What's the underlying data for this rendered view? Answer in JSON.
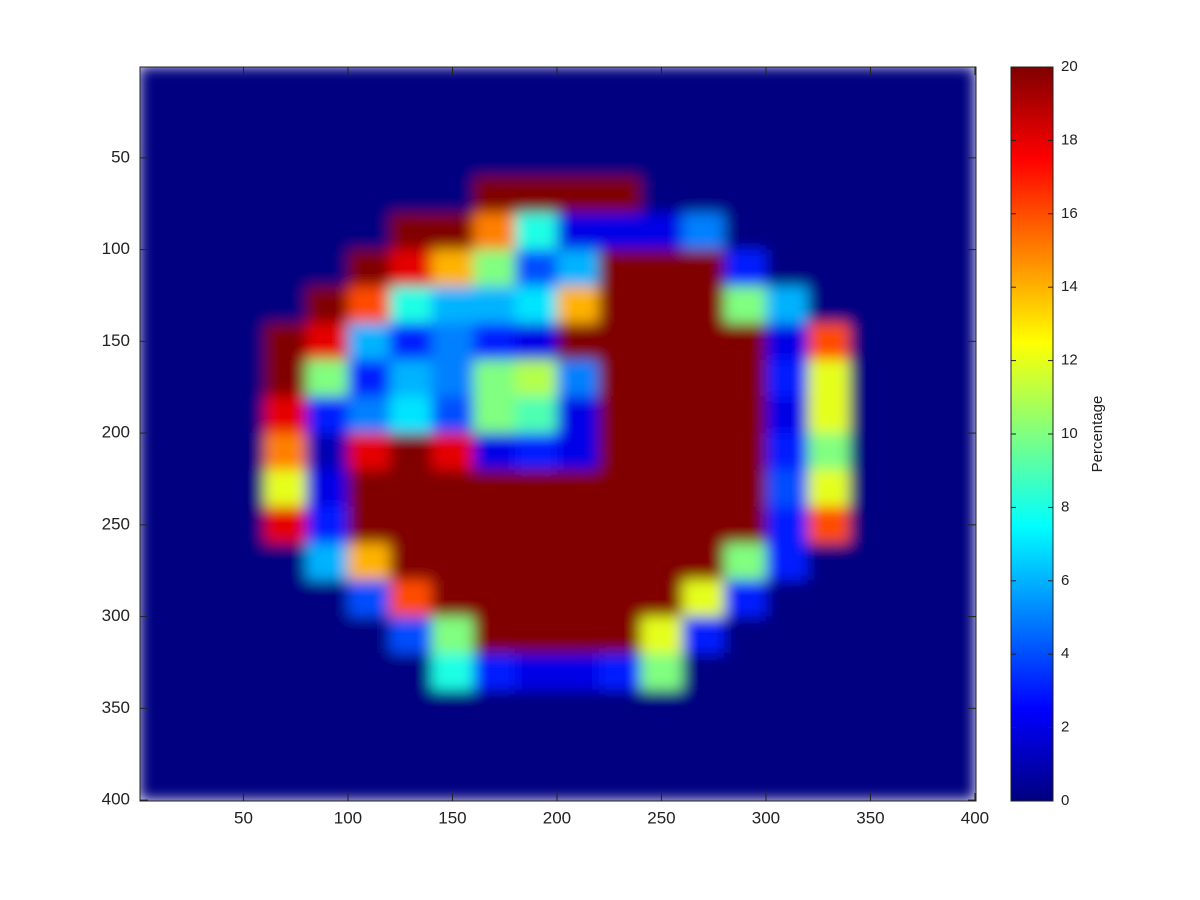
{
  "chart_data": {
    "type": "heatmap",
    "colormap": "jet",
    "x": [
      10,
      30,
      50,
      70,
      90,
      110,
      130,
      150,
      170,
      190,
      210,
      230,
      250,
      270,
      290,
      310,
      330,
      350,
      370,
      390
    ],
    "y": [
      10,
      30,
      50,
      70,
      90,
      110,
      130,
      150,
      170,
      190,
      210,
      230,
      250,
      270,
      290,
      310,
      330,
      350,
      370,
      390
    ],
    "z": [
      [
        0,
        0,
        0,
        0,
        0,
        0,
        0,
        0,
        0,
        0,
        0,
        0,
        0,
        0,
        0,
        0,
        0,
        0,
        0,
        0
      ],
      [
        0,
        0,
        0,
        0,
        0,
        0,
        0,
        0,
        0,
        0,
        0,
        0,
        0,
        0,
        0,
        0,
        0,
        0,
        0,
        0
      ],
      [
        0,
        0,
        0,
        0,
        0,
        0,
        0,
        0,
        0,
        0,
        0,
        0,
        0,
        0,
        0,
        0,
        0,
        0,
        0,
        0
      ],
      [
        0,
        0,
        0,
        0,
        0,
        0,
        0,
        0,
        20,
        20,
        20,
        20,
        0,
        0,
        0,
        0,
        0,
        0,
        0,
        0
      ],
      [
        0,
        0,
        0,
        0,
        0,
        0,
        20,
        20,
        15,
        8,
        2,
        2,
        2,
        5,
        0,
        0,
        0,
        0,
        0,
        0
      ],
      [
        0,
        0,
        0,
        0,
        0,
        20,
        18,
        14,
        10,
        4,
        6,
        20,
        20,
        20,
        3,
        0,
        0,
        0,
        0,
        0
      ],
      [
        0,
        0,
        0,
        0,
        20,
        16,
        8,
        6,
        6,
        7,
        14,
        20,
        20,
        20,
        10,
        6,
        0,
        0,
        0,
        0
      ],
      [
        0,
        0,
        0,
        20,
        18,
        6,
        3,
        5,
        3,
        2,
        20,
        20,
        20,
        20,
        20,
        2,
        16,
        0,
        0,
        0
      ],
      [
        0,
        0,
        0,
        20,
        10,
        3,
        6,
        5,
        10,
        11,
        5,
        20,
        20,
        20,
        20,
        3,
        12,
        0,
        0,
        0
      ],
      [
        0,
        0,
        0,
        18,
        3,
        5,
        7,
        4,
        10,
        9,
        2,
        20,
        20,
        20,
        20,
        2,
        12,
        0,
        0,
        0
      ],
      [
        0,
        0,
        0,
        15,
        1,
        18,
        20,
        18,
        2,
        3,
        2,
        20,
        20,
        20,
        20,
        3,
        10,
        0,
        0,
        0
      ],
      [
        0,
        0,
        0,
        12,
        2,
        20,
        20,
        20,
        20,
        20,
        20,
        20,
        20,
        20,
        20,
        4,
        12,
        0,
        0,
        0
      ],
      [
        0,
        0,
        0,
        18,
        3,
        20,
        20,
        20,
        20,
        20,
        20,
        20,
        20,
        20,
        20,
        3,
        16,
        0,
        0,
        0
      ],
      [
        0,
        0,
        0,
        0,
        6,
        14,
        20,
        20,
        20,
        20,
        20,
        20,
        20,
        20,
        10,
        3,
        0,
        0,
        0,
        0
      ],
      [
        0,
        0,
        0,
        0,
        0,
        4,
        16,
        20,
        20,
        20,
        20,
        20,
        20,
        12,
        3,
        0,
        0,
        0,
        0,
        0
      ],
      [
        0,
        0,
        0,
        0,
        0,
        0,
        4,
        10,
        20,
        20,
        20,
        20,
        12,
        3,
        0,
        0,
        0,
        0,
        0,
        0
      ],
      [
        0,
        0,
        0,
        0,
        0,
        0,
        0,
        8,
        3,
        2,
        2,
        3,
        10,
        0,
        0,
        0,
        0,
        0,
        0,
        0
      ],
      [
        0,
        0,
        0,
        0,
        0,
        0,
        0,
        0,
        0,
        0,
        0,
        0,
        0,
        0,
        0,
        0,
        0,
        0,
        0,
        0
      ],
      [
        0,
        0,
        0,
        0,
        0,
        0,
        0,
        0,
        0,
        0,
        0,
        0,
        0,
        0,
        0,
        0,
        0,
        0,
        0,
        0
      ],
      [
        0,
        0,
        0,
        0,
        0,
        0,
        0,
        0,
        0,
        0,
        0,
        0,
        0,
        0,
        0,
        0,
        0,
        0,
        0,
        0
      ]
    ],
    "xlim": [
      0.5,
      400.5
    ],
    "ylim": [
      0.5,
      400.5
    ],
    "y_reversed": true,
    "xticks": [
      50,
      100,
      150,
      200,
      250,
      300,
      350,
      400
    ],
    "yticks": [
      50,
      100,
      150,
      200,
      250,
      300,
      350,
      400
    ],
    "colorbar": {
      "label": "Percentage",
      "lim": [
        0,
        20
      ],
      "ticks": [
        0,
        2,
        4,
        6,
        8,
        10,
        12,
        14,
        16,
        18,
        20
      ]
    }
  }
}
